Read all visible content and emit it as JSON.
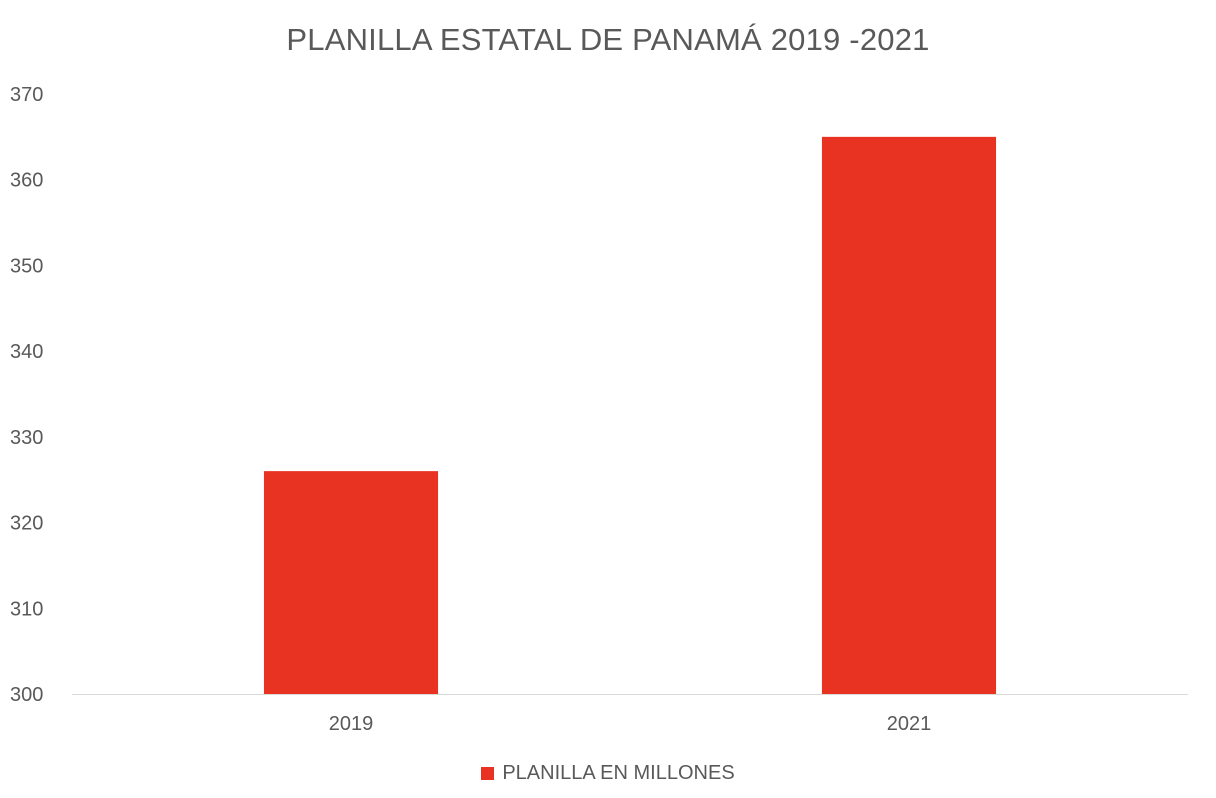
{
  "chart_data": {
    "type": "bar",
    "title": "PLANILLA ESTATAL DE PANAMÁ 2019 -2021",
    "categories": [
      "2019",
      "2021"
    ],
    "series": [
      {
        "name": "PLANILLA EN MILLONES",
        "values": [
          326,
          365
        ],
        "color": "#E83222"
      }
    ],
    "ylim": [
      300,
      370
    ],
    "yticks": [
      "300",
      "310",
      "320",
      "330",
      "340",
      "350",
      "360",
      "370"
    ],
    "xlabel": "",
    "ylabel": "",
    "grid": false,
    "legend_position": "bottom"
  }
}
